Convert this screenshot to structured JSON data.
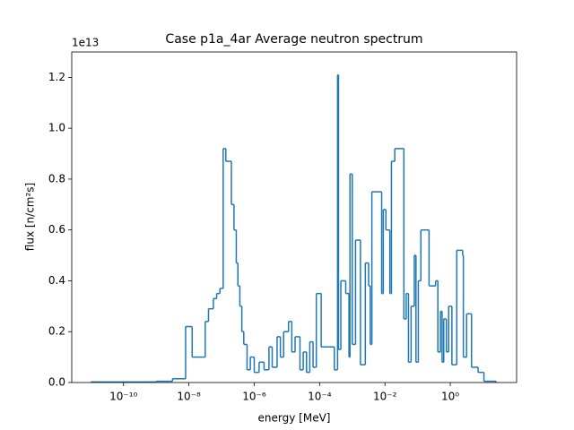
{
  "chart_data": {
    "type": "histogram",
    "title": "Case p1a_4ar Average neutron spectrum",
    "xlabel": "energy [MeV]",
    "ylabel": "flux [n/cm²s]",
    "y_offset_label": "1e13",
    "color": "#1f77b4",
    "xscale": "log",
    "grid": false,
    "bins": [
      1e-11,
      1e-09,
      3.16e-09,
      7.94e-09,
      1.26e-08,
      3.16e-08,
      3.98e-08,
      5.62e-08,
      7.08e-08,
      8.91e-08,
      1.12e-07,
      1.35e-07,
      2e-07,
      2.4e-07,
      2.82e-07,
      3.16e-07,
      3.63e-07,
      4.17e-07,
      4.79e-07,
      6.03e-07,
      7.59e-07,
      1e-06,
      1.41e-06,
      2e-06,
      2.82e-06,
      3.55e-06,
      5.01e-06,
      6.31e-06,
      7.94e-06,
      1.12e-05,
      1.41e-05,
      1.78e-05,
      2.51e-05,
      3.16e-05,
      3.98e-05,
      5.01e-05,
      6.31e-05,
      7.94e-05,
      0.000112,
      0.000178,
      0.000282,
      0.000355,
      0.00038,
      0.000447,
      0.000631,
      0.000794,
      0.000851,
      0.001,
      0.00126,
      0.00178,
      0.00251,
      0.00316,
      0.00355,
      0.00398,
      0.00794,
      0.00891,
      0.0107,
      0.0141,
      0.0158,
      0.02,
      0.038,
      0.0447,
      0.0525,
      0.0631,
      0.0794,
      0.0891,
      0.105,
      0.126,
      0.224,
      0.355,
      0.417,
      0.501,
      0.562,
      0.631,
      0.759,
      0.891,
      1.12,
      1.58,
      2.4,
      2.51,
      3.16,
      4.47,
      7.08,
      10.7,
      25.1
    ],
    "values": [
      0.002,
      0.005,
      0.015,
      0.22,
      0.1,
      0.24,
      0.29,
      0.33,
      0.35,
      0.37,
      0.92,
      0.87,
      0.7,
      0.6,
      0.47,
      0.38,
      0.3,
      0.2,
      0.15,
      0.05,
      0.1,
      0.04,
      0.08,
      0.05,
      0.14,
      0.06,
      0.18,
      0.1,
      0.2,
      0.24,
      0.12,
      0.18,
      0.05,
      0.12,
      0.04,
      0.16,
      0.06,
      0.35,
      0.14,
      0.14,
      0.05,
      1.21,
      0.13,
      0.4,
      0.35,
      0.1,
      0.82,
      0.15,
      0.56,
      0.07,
      0.47,
      0.38,
      0.15,
      0.75,
      0.35,
      0.68,
      0.6,
      0.35,
      0.87,
      0.92,
      0.25,
      0.35,
      0.08,
      0.3,
      0.5,
      0.08,
      0.4,
      0.6,
      0.38,
      0.4,
      0.12,
      0.28,
      0.08,
      0.25,
      0.12,
      0.3,
      0.07,
      0.52,
      0.5,
      0.1,
      0.27,
      0.06,
      0.04,
      0.005
    ],
    "xlim": [
      2.6e-12,
      107
    ],
    "xticks": [
      {
        "value": 1e-10,
        "label": "10⁻¹⁰"
      },
      {
        "value": 1e-08,
        "label": "10⁻⁸"
      },
      {
        "value": 1e-06,
        "label": "10⁻⁶"
      },
      {
        "value": 0.0001,
        "label": "10⁻⁴"
      },
      {
        "value": 0.01,
        "label": "10⁻²"
      },
      {
        "value": 1,
        "label": "10⁰"
      }
    ],
    "ylim": [
      0,
      1.3
    ],
    "yticks": [
      {
        "value": 0,
        "label": "0.0"
      },
      0.2,
      0.4,
      0.6,
      0.8,
      {
        "value": 1,
        "label": "1.0"
      },
      1.2
    ]
  }
}
